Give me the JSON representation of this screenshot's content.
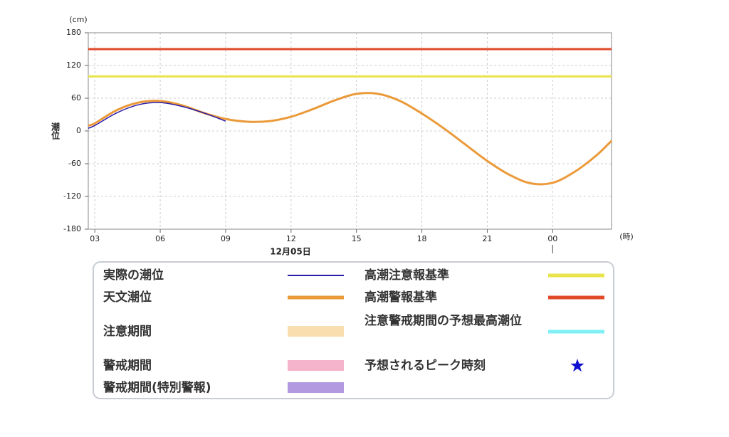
{
  "chart_data": {
    "type": "line",
    "y_unit": "(cm)",
    "y_label": "潮位",
    "x_unit": "(時)",
    "date_label": "12月05日",
    "x": [
      2.7,
      3,
      4,
      5,
      6,
      7,
      8,
      9,
      10,
      11,
      12,
      13,
      14,
      15,
      16,
      17,
      18,
      19,
      20,
      21,
      22,
      23,
      24,
      25,
      26,
      26.7
    ],
    "series": [
      {
        "name": "実際の潮位",
        "color": "#2a1aa8",
        "values": [
          5,
          10,
          33,
          48,
          52,
          45,
          33,
          18,
          null,
          null,
          null,
          null,
          null,
          null,
          null,
          null,
          null,
          null,
          null,
          null,
          null,
          null,
          null,
          null,
          null,
          null
        ]
      },
      {
        "name": "天文潮位",
        "color": "#eb9a3a",
        "values": [
          10,
          14,
          38,
          52,
          55,
          47,
          33,
          22,
          17,
          18,
          26,
          40,
          56,
          68,
          68,
          55,
          32,
          5,
          -25,
          -55,
          -80,
          -96,
          -95,
          -75,
          -45,
          -18
        ]
      }
    ],
    "reference_lines": [
      {
        "name": "高潮注意報基準",
        "color": "#e8e44a",
        "value": 100
      },
      {
        "name": "高潮警報基準",
        "color": "#e04a2a",
        "value": 150
      }
    ],
    "legend_extra": [
      {
        "name": "注意期間",
        "color": "#f9dfb0",
        "kind": "band"
      },
      {
        "name": "警戒期間",
        "color": "#f5b3cc",
        "kind": "band"
      },
      {
        "name": "警戒期間(特別警報)",
        "color": "#b39ae0",
        "kind": "band"
      },
      {
        "name": "注意警戒期間の予想最高潮位",
        "color": "#7ef0f5",
        "kind": "line"
      },
      {
        "name": "予想されるピーク時刻",
        "color": "#1010d0",
        "kind": "star"
      }
    ],
    "xlim": [
      2.7,
      26.7
    ],
    "xticks": [
      {
        "value": 3,
        "label": "03"
      },
      {
        "value": 6,
        "label": "06"
      },
      {
        "value": 9,
        "label": "09"
      },
      12,
      15,
      18,
      21,
      {
        "value": 24,
        "label": "00"
      }
    ],
    "ylim": [
      -180,
      180
    ],
    "yticks": [
      -180,
      -120,
      -60,
      0,
      60,
      120,
      180
    ],
    "grid": true
  }
}
